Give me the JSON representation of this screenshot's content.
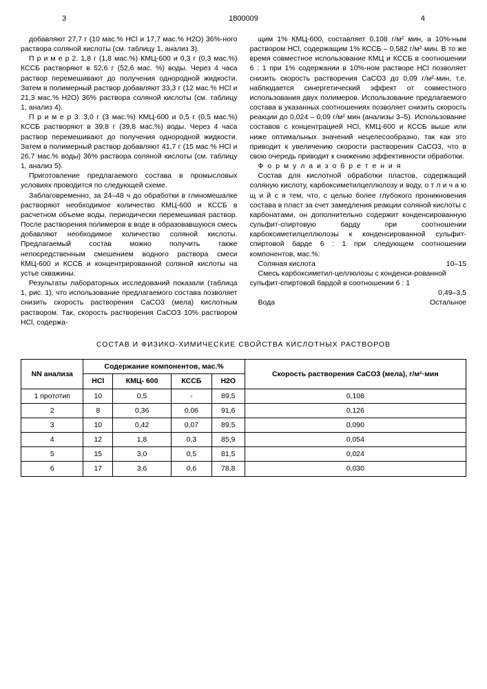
{
  "header": {
    "leftPage": "3",
    "rightPage": "4",
    "patentNumber": "1800009"
  },
  "leftCol": {
    "p1": "добавляют 27,7 г (10 мас.% HCl и 17,7 мас.% H2O) 36%-ного раствора соляной кислоты (см. таблицу 1, анализ 3).",
    "p2": "П р и м е р 2. 1,8 г (1,8 мас.%) КМЦ-600 и 0,3 г (0,3 мас.%) КССБ растворяют в 52,6 г (52,6 мас. %) воды. Через 4 часа раствор перемешивают до получения однородной жидкости. Затем в полимерный раствор добавляют 33,3 г (12 мас.% HCl и 21,3 мас.% H2O) 36% раствора соляной кислоты (см. таблицу 1, анализ 4).",
    "p3": "П р и м е р 3. 3,0 г (3 мас.%) КМЦ-600 и 0,5 г (0,5 мас.%) КССБ растворяют в 39,8 г (39,8 мас.%) воды. Через 4 часа раствор перемешивают до получения однородной жидкости. Затем в полимерный раствор добавляют 41,7 г (15 мас.% HCl и 26,7 мас.% воды) 36% раствора соляной кислоты (см. таблицу 1, анализ 5).",
    "p4": "Приготовление предлагаемого состава в промысловых условиях проводится по следующей схеме.",
    "p5": "Заблаговременно, за 24–48 ч до обработки в глиномешалке растворяют необходимое количество КМЦ-600 и КССБ в расчетном объеме воды, периодически перемешивая раствор. После растворения полимеров в воде в образовавшуюся смесь добавляют необходимое количество соляной кислоты. Предлагаемый состав можно получить также непосредственным смешением водного раствора смеси КМЦ-600 и КССБ и концентрированной соляной кислоты на устье скважины.",
    "p6": "Результаты лабораторных исследований показали (таблица 1, рис. 1), что использование предлагаемого состава позволяет снизить скорость растворения CaCO3 (мела) кислотным раствором. Так, скорость растворения CaCO3 10% раствором HCl, содержа-"
  },
  "rightCol": {
    "p1": "щим 1% КМЦ-600, составляет 0,108 г/м² мин, а 10%-ным раствором HCl, содержащим 1% КССБ – 0,582 г/м²·мин. В то же время совместное использование КМЦ и КССБ в соотношении 6 : 1 при 1% содержании в 10%-ном растворе HCl позволяет снизить скорость растворения CaCO3 до 0,09 г/м²·мин, т.е. наблюдается синергетический эффект от совместного использования двух полимеров. Использование предлагаемого состава в указанных соотношениях позволяет снизить скорость реакции до 0,024 – 0,09 г/м² мин (анализы 3–5). Использование составов с концентрацией HCl, КМЦ-600 и КССБ выше или ниже оптимальных значений нецелесообразно, так как это приводит к увеличению скорости растворения CaCO3, что в свою очередь приводит к снижению эффективности обработки.",
    "formulaTitle": "Ф о р м у л а  и з о б р е т е н и я",
    "p2": "Состав для кислотной обработки пластов, содержащий соляную кислоту, карбоксиметилцеллюлозу и воду, о т л и ч а ю щ и й с я тем, что, с целью более глубокого проникновения состава в пласт за счет замедления реакции соляной кислоты с карбонатами, он дополнительно содержит конденсированную сульфит-спиртовую барду при соотношении карбоксиметилцеллюлозы к конденсированной сульфит-спиртовой барде 6 : 1 при следующем соотношении компонентов, мас.%:",
    "comp1Label": "Соляная кислота",
    "comp1Val": "10–15",
    "comp2Label": "Смесь карбоксиметил-целлюлозы с конденси-рованной сульфит-спиртовой бардой в соотношении 6 : 1",
    "comp2Val": "0,49–3,5",
    "comp3Label": "Вода",
    "comp3Val": "Остальное"
  },
  "tableTitle": "СОСТАВ И ФИЗИКО-ХИМИЧЕСКИЕ СВОЙСТВА КИСЛОТНЫХ РАСТВОРОВ",
  "table": {
    "h1": "NN анализа",
    "h2": "Содержание компонентов, мас.%",
    "h3": "Скорость растворения CaCO3 (мела), г/м²·мин",
    "sub1": "HCl",
    "sub2": "КМЦ- 600",
    "sub3": "КССБ",
    "sub4": "H2O",
    "rows": [
      {
        "n": "1 прототип",
        "hcl": "10",
        "kmc": "0,5",
        "kssb": "-",
        "h2o": "89,5",
        "rate": "0,108"
      },
      {
        "n": "2",
        "hcl": "8",
        "kmc": "0,36",
        "kssb": "0,06",
        "h2o": "91,6",
        "rate": "0,126"
      },
      {
        "n": "3",
        "hcl": "10",
        "kmc": "0,42",
        "kssb": "0,07",
        "h2o": "89,5",
        "rate": "0,090"
      },
      {
        "n": "4",
        "hcl": "12",
        "kmc": "1,8",
        "kssb": "0,3",
        "h2o": "85,9",
        "rate": "0,054"
      },
      {
        "n": "5",
        "hcl": "15",
        "kmc": "3,0",
        "kssb": "0,5",
        "h2o": "81,5",
        "rate": "0,024"
      },
      {
        "n": "6",
        "hcl": "17",
        "kmc": "3,6",
        "kssb": "0,6",
        "h2o": "78,8",
        "rate": "0,030"
      }
    ]
  }
}
